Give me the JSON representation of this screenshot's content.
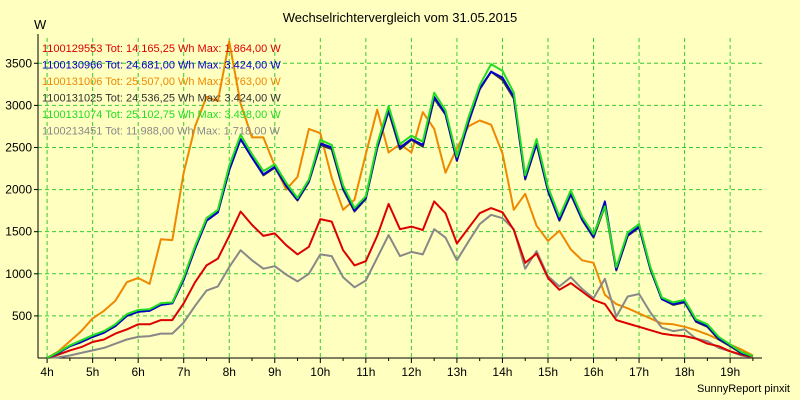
{
  "title": "Wechselrichtervergleich vom 31.05.2015",
  "y_unit": "W",
  "credit": "SunnyReport pinxit",
  "chart_data": {
    "type": "line",
    "title": "Wechselrichtervergleich vom 31.05.2015",
    "ylabel": "W",
    "xlabel": "",
    "x_ticks": [
      "4h",
      "5h",
      "6h",
      "7h",
      "8h",
      "9h",
      "10h",
      "11h",
      "12h",
      "13h",
      "14h",
      "15h",
      "16h",
      "17h",
      "18h",
      "19h"
    ],
    "xlim": [
      3.8,
      19.7
    ],
    "ylim": [
      0,
      3800
    ],
    "y_ticks": [
      500,
      1000,
      1500,
      2000,
      2500,
      3000,
      3500
    ],
    "grid": true,
    "legend_position": "top-left",
    "series": [
      {
        "name": "1100129553 Tot: 14.165,25 Wh Max: 1.864,00 W",
        "color": "#DD0000",
        "x": [
          4,
          4.25,
          4.5,
          4.75,
          5,
          5.25,
          5.5,
          5.75,
          6,
          6.25,
          6.5,
          6.75,
          7,
          7.25,
          7.5,
          7.75,
          8,
          8.25,
          8.5,
          8.75,
          9,
          9.25,
          9.5,
          9.75,
          10,
          10.25,
          10.5,
          10.75,
          11,
          11.25,
          11.5,
          11.75,
          12,
          12.25,
          12.5,
          12.75,
          13,
          13.25,
          13.5,
          13.75,
          14,
          14.25,
          14.5,
          14.75,
          15,
          15.25,
          15.5,
          15.75,
          16,
          16.25,
          16.5,
          16.75,
          17,
          17.25,
          17.5,
          17.75,
          18,
          18.25,
          18.5,
          18.75,
          19,
          19.25,
          19.5
        ],
        "y": [
          0,
          40,
          90,
          130,
          190,
          220,
          290,
          340,
          400,
          400,
          450,
          450,
          650,
          900,
          1100,
          1180,
          1450,
          1740,
          1580,
          1450,
          1480,
          1340,
          1230,
          1320,
          1650,
          1620,
          1280,
          1100,
          1150,
          1450,
          1830,
          1530,
          1560,
          1520,
          1860,
          1720,
          1360,
          1540,
          1720,
          1780,
          1730,
          1520,
          1130,
          1240,
          950,
          810,
          890,
          790,
          690,
          640,
          450,
          410,
          370,
          330,
          290,
          270,
          260,
          230,
          170,
          140,
          80,
          40,
          10
        ]
      },
      {
        "name": "1100130966 Tot: 24.681,00 Wh Max: 3.424,00 W",
        "color": "#0000CC",
        "x": [
          4,
          4.25,
          4.5,
          4.75,
          5,
          5.25,
          5.5,
          5.75,
          6,
          6.25,
          6.5,
          6.75,
          7,
          7.25,
          7.5,
          7.75,
          8,
          8.25,
          8.5,
          8.75,
          9,
          9.25,
          9.5,
          9.75,
          10,
          10.25,
          10.5,
          10.75,
          11,
          11.25,
          11.5,
          11.75,
          12,
          12.25,
          12.5,
          12.75,
          13,
          13.25,
          13.5,
          13.75,
          14,
          14.25,
          14.5,
          14.75,
          15,
          15.25,
          15.5,
          15.75,
          16,
          16.25,
          16.5,
          16.75,
          17,
          17.25,
          17.5,
          17.75,
          18,
          18.25,
          18.5,
          18.75,
          19,
          19.25,
          19.5
        ],
        "y": [
          0,
          60,
          140,
          190,
          250,
          300,
          380,
          500,
          550,
          560,
          630,
          650,
          930,
          1300,
          1630,
          1730,
          2230,
          2600,
          2380,
          2180,
          2270,
          2050,
          1880,
          2100,
          2550,
          2500,
          2020,
          1750,
          1900,
          2500,
          2950,
          2500,
          2600,
          2530,
          3100,
          2900,
          2350,
          2800,
          3200,
          3400,
          3330,
          3100,
          2130,
          2550,
          1990,
          1640,
          1950,
          1650,
          1440,
          1860,
          1050,
          1460,
          1560,
          1060,
          700,
          640,
          670,
          440,
          380,
          230,
          150,
          60,
          20
        ]
      },
      {
        "name": "1100131006 Tot: 25.507,00 Wh Max: 3.763,00 W",
        "color": "#EE8800",
        "x": [
          4,
          4.25,
          4.5,
          4.75,
          5,
          5.25,
          5.5,
          5.75,
          6,
          6.25,
          6.5,
          6.75,
          7,
          7.25,
          7.5,
          7.75,
          8,
          8.25,
          8.5,
          8.75,
          9,
          9.25,
          9.5,
          9.75,
          10,
          10.25,
          10.5,
          10.75,
          11,
          11.25,
          11.5,
          11.75,
          12,
          12.25,
          12.5,
          12.75,
          13,
          13.25,
          13.5,
          13.75,
          14,
          14.25,
          14.5,
          14.75,
          15,
          15.25,
          15.5,
          15.75,
          16,
          16.25,
          16.5,
          16.75,
          17,
          17.25,
          17.5,
          17.75,
          18,
          18.25,
          18.5,
          18.75,
          19,
          19.25,
          19.5
        ],
        "y": [
          0,
          80,
          200,
          320,
          470,
          560,
          680,
          900,
          950,
          880,
          1410,
          1400,
          2200,
          2750,
          3100,
          3050,
          3760,
          3020,
          2620,
          2620,
          2280,
          2000,
          2150,
          2720,
          2670,
          2140,
          1760,
          1880,
          2420,
          2950,
          2440,
          2540,
          2440,
          2920,
          2720,
          2200,
          2490,
          2750,
          2820,
          2770,
          2430,
          1760,
          1950,
          1570,
          1390,
          1510,
          1290,
          1160,
          1130,
          750,
          640,
          590,
          530,
          470,
          410,
          400,
          370,
          330,
          280,
          220,
          160,
          100,
          30
        ]
      },
      {
        "name": "1100131025 Tot: 24.536,25 Wh Max: 3.424,00 W",
        "color": "#333333",
        "x": [
          4,
          4.25,
          4.5,
          4.75,
          5,
          5.25,
          5.5,
          5.75,
          6,
          6.25,
          6.5,
          6.75,
          7,
          7.25,
          7.5,
          7.75,
          8,
          8.25,
          8.5,
          8.75,
          9,
          9.25,
          9.5,
          9.75,
          10,
          10.25,
          10.5,
          10.75,
          11,
          11.25,
          11.5,
          11.75,
          12,
          12.25,
          12.5,
          12.75,
          13,
          13.25,
          13.5,
          13.75,
          14,
          14.25,
          14.5,
          14.75,
          15,
          15.25,
          15.5,
          15.75,
          16,
          16.25,
          16.5,
          16.75,
          17,
          17.25,
          17.5,
          17.75,
          18,
          18.25,
          18.5,
          18.75,
          19,
          19.25,
          19.5
        ],
        "y": [
          0,
          60,
          140,
          190,
          250,
          300,
          380,
          500,
          550,
          560,
          630,
          650,
          930,
          1300,
          1630,
          1730,
          2230,
          2600,
          2380,
          2170,
          2260,
          2040,
          1870,
          2090,
          2530,
          2480,
          2000,
          1740,
          1890,
          2490,
          2930,
          2480,
          2590,
          2510,
          3080,
          2890,
          2340,
          2790,
          3190,
          3400,
          3300,
          3080,
          2120,
          2540,
          1980,
          1630,
          1940,
          1640,
          1430,
          1800,
          1040,
          1450,
          1550,
          1050,
          700,
          630,
          660,
          430,
          370,
          220,
          140,
          55,
          15
        ]
      },
      {
        "name": "1100131074 Tot: 25.102,75 Wh Max: 3.498,00 W",
        "color": "#22DD22",
        "x": [
          4,
          4.25,
          4.5,
          4.75,
          5,
          5.25,
          5.5,
          5.75,
          6,
          6.25,
          6.5,
          6.75,
          7,
          7.25,
          7.5,
          7.75,
          8,
          8.25,
          8.5,
          8.75,
          9,
          9.25,
          9.5,
          9.75,
          10,
          10.25,
          10.5,
          10.75,
          11,
          11.25,
          11.5,
          11.75,
          12,
          12.25,
          12.5,
          12.75,
          13,
          13.25,
          13.5,
          13.75,
          14,
          14.25,
          14.5,
          14.75,
          15,
          15.25,
          15.5,
          15.75,
          16,
          16.25,
          16.5,
          16.75,
          17,
          17.25,
          17.5,
          17.75,
          18,
          18.25,
          18.5,
          18.75,
          19,
          19.25,
          19.5
        ],
        "y": [
          0,
          70,
          150,
          210,
          270,
          320,
          400,
          520,
          570,
          580,
          650,
          660,
          960,
          1330,
          1660,
          1760,
          2280,
          2650,
          2420,
          2220,
          2300,
          2080,
          1900,
          2120,
          2590,
          2530,
          2050,
          1780,
          1920,
          2540,
          2990,
          2540,
          2640,
          2570,
          3150,
          2940,
          2390,
          2850,
          3240,
          3490,
          3410,
          3150,
          2170,
          2600,
          2030,
          1680,
          1990,
          1680,
          1470,
          1800,
          1080,
          1490,
          1590,
          1080,
          720,
          660,
          690,
          460,
          400,
          250,
          160,
          70,
          20
        ]
      },
      {
        "name": "1100213451 Tot: 11.988,00 Wh Max: 1.718,00 W",
        "color": "#888888",
        "x": [
          4,
          4.25,
          4.5,
          4.75,
          5,
          5.25,
          5.5,
          5.75,
          6,
          6.25,
          6.5,
          6.75,
          7,
          7.25,
          7.5,
          7.75,
          8,
          8.25,
          8.5,
          8.75,
          9,
          9.25,
          9.5,
          9.75,
          10,
          10.25,
          10.5,
          10.75,
          11,
          11.25,
          11.5,
          11.75,
          12,
          12.25,
          12.5,
          12.75,
          13,
          13.25,
          13.5,
          13.75,
          14,
          14.25,
          14.5,
          14.75,
          15,
          15.25,
          15.5,
          15.75,
          16,
          16.25,
          16.5,
          16.75,
          17,
          17.25,
          17.5,
          17.75,
          18,
          18.25,
          18.5,
          18.75,
          19,
          19.25,
          19.5
        ],
        "y": [
          0,
          10,
          30,
          60,
          90,
          120,
          170,
          220,
          250,
          260,
          290,
          290,
          420,
          620,
          800,
          850,
          1080,
          1280,
          1160,
          1060,
          1090,
          990,
          910,
          1000,
          1230,
          1210,
          960,
          840,
          920,
          1190,
          1460,
          1210,
          1260,
          1230,
          1530,
          1430,
          1160,
          1380,
          1590,
          1700,
          1660,
          1530,
          1060,
          1270,
          970,
          850,
          960,
          820,
          710,
          940,
          490,
          730,
          760,
          540,
          360,
          320,
          340,
          230,
          200,
          120,
          80,
          30,
          10
        ]
      }
    ]
  }
}
